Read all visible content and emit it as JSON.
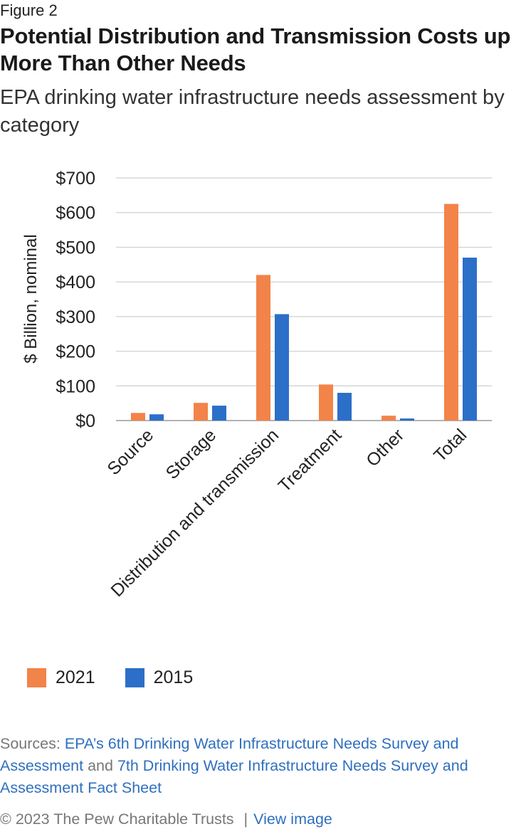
{
  "header": {
    "figure_label": "Figure 2",
    "title": "Potential Distribution and Transmission Costs up More Than Other Needs",
    "subtitle": "EPA drinking water infrastructure needs assessment by category"
  },
  "legend": {
    "items": [
      {
        "label": "2021",
        "color": "#f28349"
      },
      {
        "label": "2015",
        "color": "#2c6fc8"
      }
    ]
  },
  "sources": {
    "prefix": "Sources: ",
    "link1": "EPA’s 6th Drinking Water Infrastructure Needs Survey and Assessment",
    "connector": " and ",
    "link2": "7th Drinking Water Infrastructure Needs Survey and Assessment Fact Sheet"
  },
  "footer": {
    "copyright": "© 2023 The Pew Charitable Trusts",
    "separator": "|",
    "link": "View image"
  },
  "chart_data": {
    "type": "bar",
    "title": "",
    "xlabel": "",
    "ylabel": "$ Billion, nominal",
    "ylim": [
      0,
      700
    ],
    "yticks": [
      0,
      100,
      200,
      300,
      400,
      500,
      600,
      700
    ],
    "ytick_labels": [
      "$0",
      "$100",
      "$200",
      "$300",
      "$400",
      "$500",
      "$600",
      "$700"
    ],
    "grid": true,
    "legend_position": "bottom-left",
    "categories": [
      "Source",
      "Storage",
      "Distribution and transmission",
      "Treatment",
      "Other",
      "Total"
    ],
    "series": [
      {
        "name": "2021",
        "color": "#f28349",
        "values": [
          22,
          51,
          420,
          104,
          14,
          625
        ]
      },
      {
        "name": "2015",
        "color": "#2c6fc8",
        "values": [
          18,
          43,
          307,
          80,
          6,
          470
        ]
      }
    ]
  }
}
